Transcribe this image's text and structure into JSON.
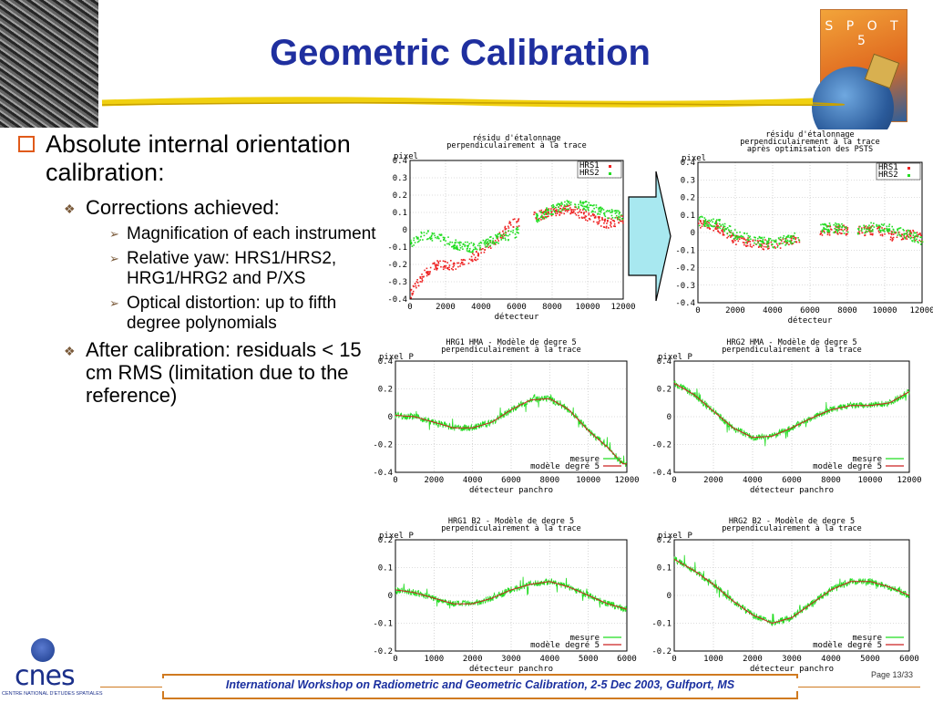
{
  "title": "Geometric Calibration",
  "logo_text": "S P O T 5",
  "bullets": {
    "b1": "Absolute internal orientation calibration:",
    "b1a": "Corrections achieved:",
    "b1a1": "Magnification of each instrument",
    "b1a2": "Relative yaw: HRS1/HRS2, HRG1/HRG2 and P/XS",
    "b1a3": "Optical distortion: up to fifth degree polynomials",
    "b1b": "After calibration: residuals < 15 cm RMS (limitation due to the reference)"
  },
  "footer": {
    "text": "International Workshop on Radiometric and Geometric Calibration, 2-5 Dec 2003, Gulfport, MS",
    "page": "Page 13/33"
  },
  "cnes": {
    "word": "cnes",
    "sub": "CENTRE NATIONAL D'ETUDES SPATIALES"
  },
  "colors": {
    "title": "#1f2f9f",
    "green": "#22dd22",
    "red": "#ee2222",
    "accent": "#d07a20"
  },
  "chart_data": [
    {
      "type": "scatter",
      "title": "résidu d'étalonnage\nperpendiculairement à la trace",
      "ylabel": "pixel",
      "xlabel": "détecteur",
      "xlim": [
        0,
        12000
      ],
      "ylim": [
        -0.4,
        0.4
      ],
      "xticks": [
        0,
        2000,
        4000,
        6000,
        8000,
        10000,
        12000
      ],
      "yticks": [
        0.4,
        0.3,
        0.2,
        0.1,
        0,
        -0.1,
        -0.2,
        -0.3,
        -0.4
      ],
      "gap": [
        6100,
        6900
      ],
      "series": [
        {
          "name": "HRS1",
          "color": "#ee2222",
          "points": [
            [
              0,
              -0.37
            ],
            [
              800,
              -0.24
            ],
            [
              1500,
              -0.2
            ],
            [
              2500,
              -0.2
            ],
            [
              3500,
              -0.16
            ],
            [
              4500,
              -0.08
            ],
            [
              5500,
              0.02
            ],
            [
              6000,
              0.05
            ],
            [
              7000,
              0.08
            ],
            [
              8000,
              0.11
            ],
            [
              9000,
              0.12
            ],
            [
              10000,
              0.08
            ],
            [
              11000,
              0.04
            ],
            [
              12000,
              0.06
            ]
          ]
        },
        {
          "name": "HRS2",
          "color": "#22dd22",
          "points": [
            [
              0,
              -0.07
            ],
            [
              800,
              -0.02
            ],
            [
              1500,
              -0.04
            ],
            [
              2500,
              -0.08
            ],
            [
              3500,
              -0.1
            ],
            [
              4500,
              -0.06
            ],
            [
              5500,
              -0.03
            ],
            [
              6000,
              -0.01
            ],
            [
              7000,
              0.07
            ],
            [
              8000,
              0.12
            ],
            [
              9000,
              0.15
            ],
            [
              10000,
              0.14
            ],
            [
              11000,
              0.1
            ],
            [
              12000,
              0.08
            ]
          ]
        }
      ]
    },
    {
      "type": "scatter",
      "title": "résidu d'étalonnage\nperpendiculairement à la trace\naprès optimisation des PSTS",
      "ylabel": "pixel",
      "xlabel": "détecteur",
      "xlim": [
        0,
        12000
      ],
      "ylim": [
        -0.4,
        0.4
      ],
      "xticks": [
        0,
        2000,
        4000,
        6000,
        8000,
        10000,
        12000
      ],
      "yticks": [
        0.4,
        0.3,
        0.2,
        0.1,
        0,
        -0.1,
        -0.2,
        -0.3,
        -0.4
      ],
      "gaps": [
        [
          5400,
          6500
        ],
        [
          8000,
          8500
        ]
      ],
      "series": [
        {
          "name": "HRS1",
          "color": "#ee2222",
          "points": [
            [
              0,
              0.05
            ],
            [
              1000,
              0.04
            ],
            [
              2000,
              -0.04
            ],
            [
              3000,
              -0.06
            ],
            [
              4000,
              -0.07
            ],
            [
              5000,
              -0.04
            ],
            [
              6500,
              0.01
            ],
            [
              7500,
              0.02
            ],
            [
              8500,
              0.01
            ],
            [
              9500,
              0.02
            ],
            [
              10500,
              -0.02
            ],
            [
              11500,
              -0.01
            ],
            [
              12000,
              -0.03
            ]
          ]
        },
        {
          "name": "HRS2",
          "color": "#22dd22",
          "points": [
            [
              0,
              0.07
            ],
            [
              1000,
              0.06
            ],
            [
              2000,
              -0.01
            ],
            [
              3000,
              -0.04
            ],
            [
              4000,
              -0.06
            ],
            [
              5000,
              -0.03
            ],
            [
              6500,
              0.03
            ],
            [
              7500,
              0.03
            ],
            [
              8500,
              0.02
            ],
            [
              9500,
              0.04
            ],
            [
              10500,
              0.02
            ],
            [
              11500,
              -0.02
            ],
            [
              12000,
              -0.04
            ]
          ]
        }
      ]
    },
    {
      "type": "line",
      "title": "HRG1 HMA - Modèle de degre 5\nperpendiculairement à la trace",
      "ylabel": "pixel P",
      "xlabel": "détecteur panchro",
      "xlim": [
        0,
        12000
      ],
      "ylim": [
        -0.4,
        0.4
      ],
      "xticks": [
        0,
        2000,
        4000,
        6000,
        8000,
        10000,
        12000
      ],
      "yticks": [
        0.4,
        0.2,
        0,
        -0.2,
        -0.4
      ],
      "series": [
        {
          "name": "mesure",
          "color": "#22dd22"
        },
        {
          "name": "modèle degré 5",
          "color": "#cc2222",
          "points": [
            [
              0,
              0.01
            ],
            [
              1000,
              0.0
            ],
            [
              2000,
              -0.04
            ],
            [
              3000,
              -0.08
            ],
            [
              4000,
              -0.08
            ],
            [
              5000,
              -0.04
            ],
            [
              6000,
              0.05
            ],
            [
              7000,
              0.12
            ],
            [
              8000,
              0.13
            ],
            [
              9000,
              0.05
            ],
            [
              10000,
              -0.1
            ],
            [
              11000,
              -0.22
            ],
            [
              11800,
              -0.34
            ]
          ]
        }
      ]
    },
    {
      "type": "line",
      "title": "HRG2 HMA - Modèle de degre 5\nperpendiculairement à la trace",
      "ylabel": "pixel P",
      "xlabel": "détecteur panchro",
      "xlim": [
        0,
        12000
      ],
      "ylim": [
        -0.4,
        0.4
      ],
      "xticks": [
        0,
        2000,
        4000,
        6000,
        8000,
        10000,
        12000
      ],
      "yticks": [
        0.4,
        0.2,
        0,
        -0.2,
        -0.4
      ],
      "series": [
        {
          "name": "mesure",
          "color": "#22dd22"
        },
        {
          "name": "modèle degré 5",
          "color": "#cc2222",
          "points": [
            [
              0,
              0.24
            ],
            [
              1000,
              0.16
            ],
            [
              2000,
              0.04
            ],
            [
              3000,
              -0.08
            ],
            [
              4000,
              -0.15
            ],
            [
              5000,
              -0.14
            ],
            [
              6000,
              -0.08
            ],
            [
              7000,
              -0.01
            ],
            [
              8000,
              0.05
            ],
            [
              9000,
              0.08
            ],
            [
              10000,
              0.08
            ],
            [
              11000,
              0.1
            ],
            [
              12000,
              0.18
            ]
          ]
        }
      ]
    },
    {
      "type": "line",
      "title": "HRG1 B2 - Modèle de degre 5\nperpendiculairement à la trace",
      "ylabel": "pixel P",
      "xlabel": "détecteur panchro",
      "xlim": [
        0,
        6000
      ],
      "ylim": [
        -0.2,
        0.2
      ],
      "xticks": [
        0,
        1000,
        2000,
        3000,
        4000,
        5000,
        6000
      ],
      "yticks": [
        0.2,
        0.1,
        0,
        -0.1,
        -0.2
      ],
      "series": [
        {
          "name": "mesure",
          "color": "#22dd22"
        },
        {
          "name": "modèle degré 5",
          "color": "#cc2222",
          "points": [
            [
              0,
              0.02
            ],
            [
              500,
              0.01
            ],
            [
              1000,
              -0.01
            ],
            [
              1500,
              -0.03
            ],
            [
              2000,
              -0.03
            ],
            [
              2500,
              -0.01
            ],
            [
              3000,
              0.02
            ],
            [
              3500,
              0.04
            ],
            [
              4000,
              0.05
            ],
            [
              4500,
              0.03
            ],
            [
              5000,
              0.0
            ],
            [
              5500,
              -0.03
            ],
            [
              6000,
              -0.05
            ]
          ]
        }
      ]
    },
    {
      "type": "line",
      "title": "HRG2 B2 - Modèle de degre 5\nperpendiculairement à la trace",
      "ylabel": "pixel P",
      "xlabel": "détecteur panchro",
      "xlim": [
        0,
        6000
      ],
      "ylim": [
        -0.2,
        0.2
      ],
      "xticks": [
        0,
        1000,
        2000,
        3000,
        4000,
        5000,
        6000
      ],
      "yticks": [
        0.2,
        0.1,
        0,
        -0.1,
        -0.2
      ],
      "series": [
        {
          "name": "mesure",
          "color": "#22dd22"
        },
        {
          "name": "modèle degré 5",
          "color": "#cc2222",
          "points": [
            [
              0,
              0.13
            ],
            [
              500,
              0.09
            ],
            [
              1000,
              0.04
            ],
            [
              1500,
              -0.02
            ],
            [
              2000,
              -0.07
            ],
            [
              2500,
              -0.1
            ],
            [
              3000,
              -0.08
            ],
            [
              3500,
              -0.03
            ],
            [
              4000,
              0.02
            ],
            [
              4500,
              0.05
            ],
            [
              5000,
              0.05
            ],
            [
              5500,
              0.03
            ],
            [
              6000,
              0.0
            ]
          ]
        }
      ]
    }
  ]
}
